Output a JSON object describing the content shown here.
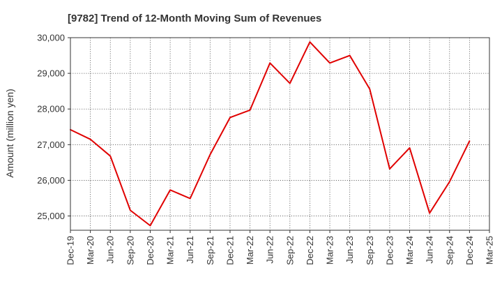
{
  "chart_data": {
    "type": "line",
    "title": "[9782]  Trend of 12-Month Moving Sum of Revenues",
    "xlabel": "",
    "ylabel": "Amount (million yen)",
    "ylim": [
      24600,
      30000
    ],
    "yticks": [
      25000,
      26000,
      27000,
      28000,
      29000,
      30000
    ],
    "ytick_labels": [
      "25,000",
      "26,000",
      "27,000",
      "28,000",
      "29,000",
      "30,000"
    ],
    "categories": [
      "Dec-19",
      "Mar-20",
      "Jun-20",
      "Sep-20",
      "Dec-20",
      "Mar-21",
      "Jun-21",
      "Sep-21",
      "Dec-21",
      "Mar-22",
      "Jun-22",
      "Sep-22",
      "Dec-22",
      "Mar-23",
      "Jun-23",
      "Sep-23",
      "Dec-23",
      "Mar-24",
      "Jun-24",
      "Sep-24",
      "Dec-24",
      "Mar-25"
    ],
    "grid": true,
    "series": [
      {
        "color": "#e00000",
        "values": [
          27420,
          27150,
          26680,
          25160,
          24730,
          25730,
          25490,
          26720,
          27760,
          27970,
          29290,
          28720,
          29880,
          29290,
          29500,
          28560,
          26320,
          26910,
          25080,
          25960,
          27100,
          null
        ]
      }
    ]
  }
}
